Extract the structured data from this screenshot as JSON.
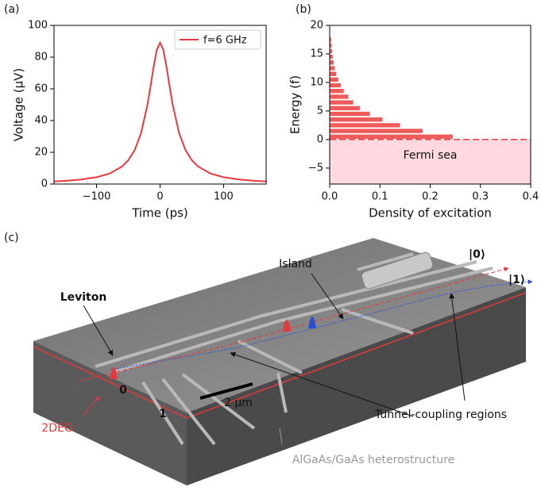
{
  "chart_data": [
    {
      "type": "line",
      "label": "(a)",
      "xlabel": "Time (ps)",
      "ylabel": "Voltage (μV)",
      "x": [
        -167,
        -150,
        -125,
        -100,
        -80,
        -60,
        -50,
        -40,
        -30,
        -20,
        -15,
        -10,
        -5,
        0,
        5,
        10,
        15,
        20,
        30,
        40,
        50,
        60,
        80,
        100,
        125,
        150,
        167
      ],
      "series": [
        {
          "name": "f=6 GHz",
          "color": "#e8383d",
          "values": [
            1.6,
            2.0,
            2.8,
            4.3,
            6.5,
            11.0,
            15.0,
            21.4,
            32.0,
            49.7,
            61.6,
            74.3,
            84.8,
            89,
            84.8,
            74.3,
            61.6,
            49.7,
            32.0,
            21.4,
            15.0,
            11.0,
            6.5,
            4.3,
            2.8,
            2.0,
            1.6
          ]
        }
      ],
      "xlim": [
        -167,
        167
      ],
      "ylim": [
        0,
        100
      ],
      "xticks": [
        {
          "value": -100,
          "label": "−100"
        },
        0,
        100
      ],
      "yticks": [
        0,
        20,
        40,
        60,
        80,
        100
      ],
      "legend": "upper right"
    },
    {
      "type": "barh",
      "label": "(b)",
      "xlabel": "Density of excitation",
      "ylabel": "Energy (f)",
      "y": [
        0.5,
        1.5,
        2.5,
        3.5,
        4.5,
        5.5,
        6.5,
        7.5,
        8.5,
        9.5,
        10.5,
        11.5,
        12.5,
        13.5,
        14.5,
        15.5,
        16.5,
        17.5
      ],
      "values": [
        0.245,
        0.185,
        0.14,
        0.105,
        0.08,
        0.06,
        0.047,
        0.037,
        0.028,
        0.022,
        0.017,
        0.013,
        0.01,
        0.008,
        0.006,
        0.005,
        0.004,
        0.003
      ],
      "color": "#ef5a5a",
      "annotation": "Fermi sea",
      "fermi_level": 0,
      "sea_color": "#ffd9df",
      "xlim": [
        0,
        0.4
      ],
      "ylim": [
        -7.8,
        20
      ],
      "xticks": [
        {
          "value": 0,
          "label": "0.0"
        },
        0.1,
        0.2,
        0.3,
        0.4
      ],
      "yticks": [
        {
          "value": -5,
          "label": "−5"
        },
        0,
        5,
        10,
        15,
        20
      ]
    }
  ],
  "figure_c": {
    "label": "(c)",
    "island": "Island",
    "state0": "|0⟩",
    "state1": "|1⟩",
    "leviton": "Leviton",
    "gate0": "0",
    "gate1": "1",
    "scale": "2 μm",
    "tunnel": "Tunnel-coupling regions",
    "layer": "2DEG",
    "substrate": "AlGaAs/GaAs heterostructure"
  }
}
